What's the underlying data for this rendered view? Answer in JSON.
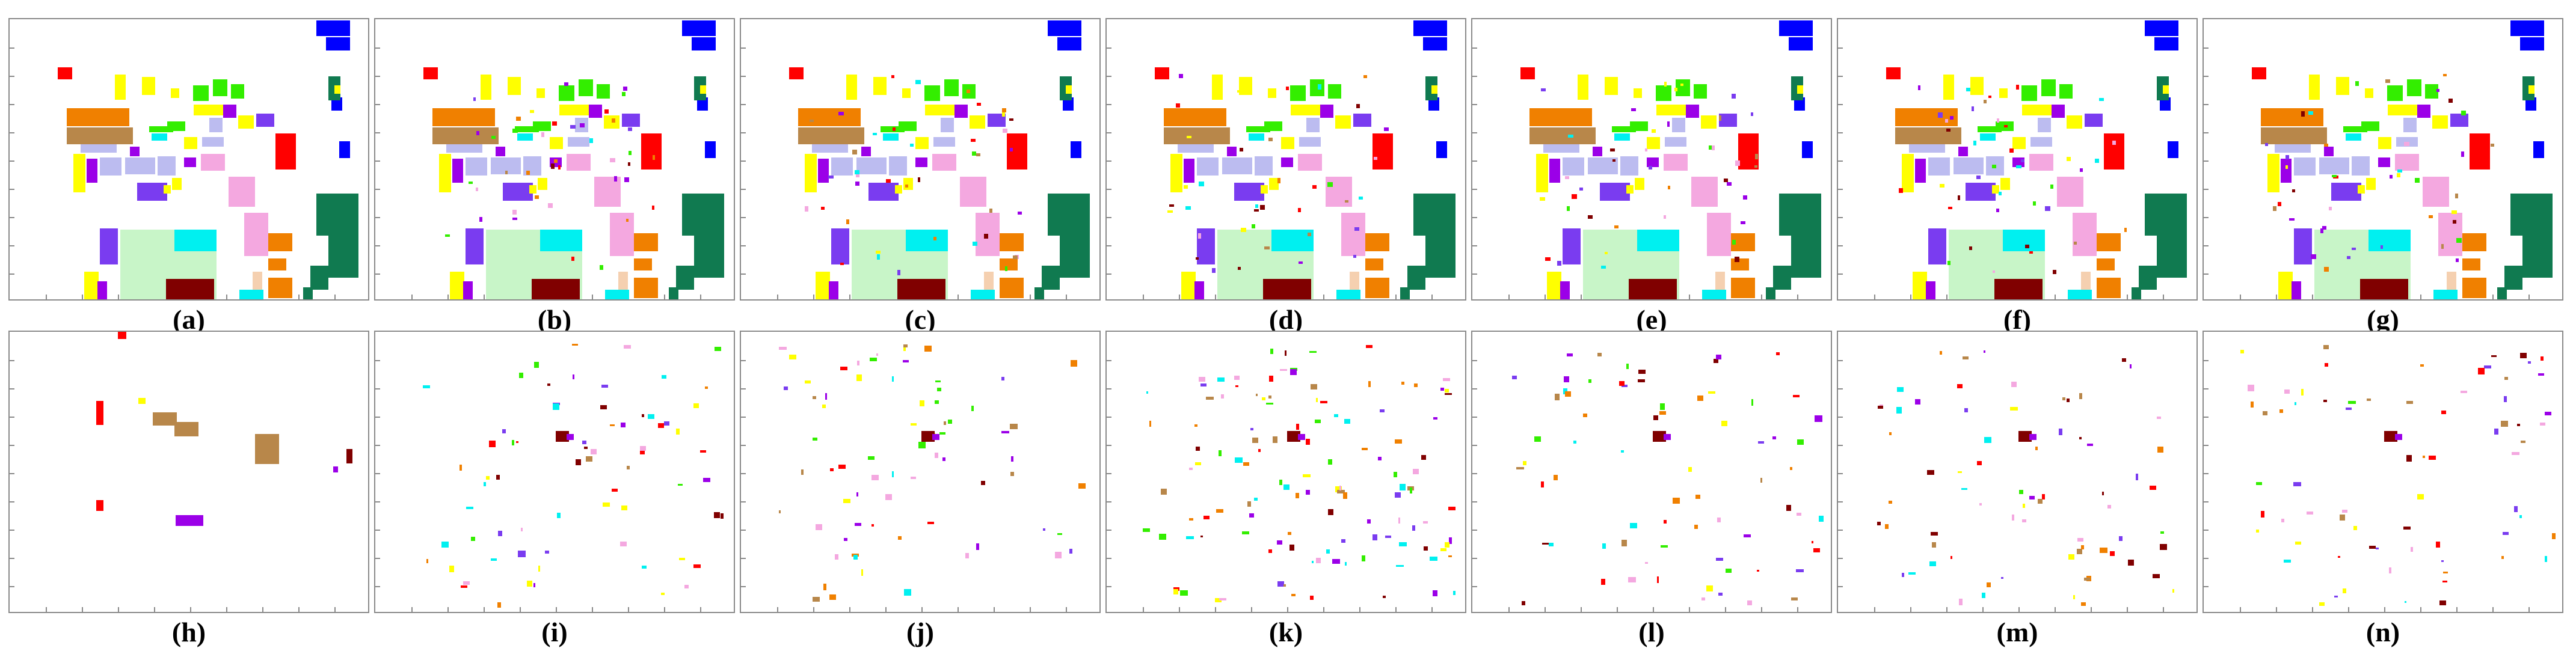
{
  "figure": {
    "panel_labels": [
      "(a)",
      "(b)",
      "(c)",
      "(d)",
      "(e)",
      "(f)",
      "(g)",
      "(h)",
      "(i)",
      "(j)",
      "(k)",
      "(l)",
      "(m)",
      "(n)"
    ],
    "row1_type": "classification-map",
    "row2_type": "error-map",
    "class_colors": {
      "red": "#ff0000",
      "orange": "#f08000",
      "tan": "#b8874a",
      "yellow": "#ffff00",
      "green": "#33ee00",
      "purple": "#9b00e8",
      "violet": "#7a3cf0",
      "lavender": "#bcbcf0",
      "pink": "#f4a8e0",
      "cyan": "#00f0f0",
      "maroon": "#800000",
      "light_green": "#c8f5c8",
      "dark_green": "#107a50",
      "blue": "#0000ff",
      "peach": "#f5d0b0"
    }
  }
}
